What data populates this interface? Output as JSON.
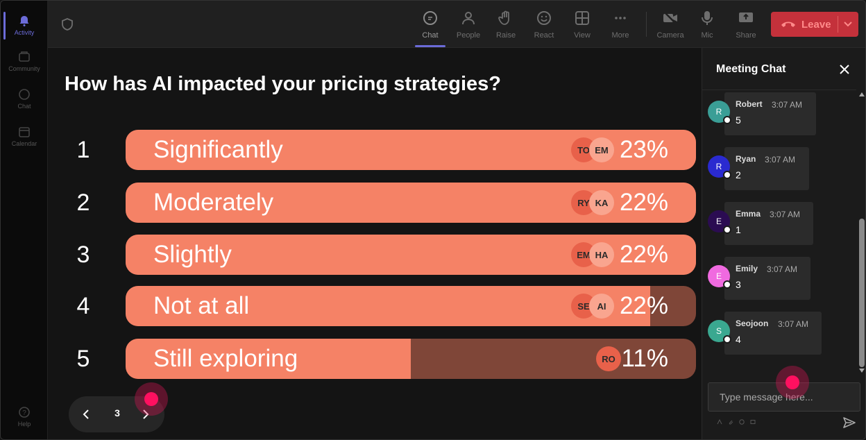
{
  "rail": {
    "items": [
      {
        "label": "Activity",
        "icon": "bell-icon",
        "active": true
      },
      {
        "label": "Community",
        "icon": "community-icon"
      },
      {
        "label": "Chat",
        "icon": "chat-icon"
      },
      {
        "label": "Calendar",
        "icon": "calendar-icon"
      },
      {
        "label": "Help",
        "icon": "help-icon"
      }
    ]
  },
  "toolbar": {
    "chat": "Chat",
    "people": "People",
    "raise": "Raise",
    "react": "React",
    "view": "View",
    "more": "More",
    "camera": "Camera",
    "mic": "Mic",
    "share": "Share",
    "leave": "Leave"
  },
  "poll": {
    "question": "How has AI impacted your pricing strategies?",
    "options": [
      {
        "num": "1",
        "label": "Significantly",
        "percent": "23%",
        "fill": 1.0,
        "avatars": [
          "TO",
          "EM"
        ]
      },
      {
        "num": "2",
        "label": "Moderately",
        "percent": "22%",
        "fill": 1.0,
        "avatars": [
          "RY",
          "KA"
        ]
      },
      {
        "num": "3",
        "label": "Slightly",
        "percent": "22%",
        "fill": 1.0,
        "avatars": [
          "EM",
          "HA"
        ]
      },
      {
        "num": "4",
        "label": "Not at all",
        "percent": "22%",
        "fill": 0.92,
        "avatars": [
          "SE",
          "AI"
        ]
      },
      {
        "num": "5",
        "label": "Still exploring",
        "percent": "11%",
        "fill": 0.5,
        "avatars": [
          "RO"
        ]
      }
    ],
    "page": "3"
  },
  "chat": {
    "title": "Meeting Chat",
    "messages": [
      {
        "initial": "R",
        "name": "Robert",
        "time": "3:07 AM",
        "text": "5",
        "color": "#3a9e96"
      },
      {
        "initial": "R",
        "name": "Ryan",
        "time": "3:07 AM",
        "text": "2",
        "color": "#2a2ad0"
      },
      {
        "initial": "E",
        "name": "Emma",
        "time": "3:07 AM",
        "text": "1",
        "color": "#2b0c52"
      },
      {
        "initial": "E",
        "name": "Emily",
        "time": "3:07 AM",
        "text": "3",
        "color": "#f06ae0"
      },
      {
        "initial": "S",
        "name": "Seojoon",
        "time": "3:07 AM",
        "text": "4",
        "color": "#3aa890"
      }
    ],
    "placeholder": "Type message here..."
  },
  "colors": {
    "bar_fill": "#f58266",
    "bar_bg": "#7f4638",
    "accent": "#6b6bd8",
    "leave": "#c4313b"
  }
}
